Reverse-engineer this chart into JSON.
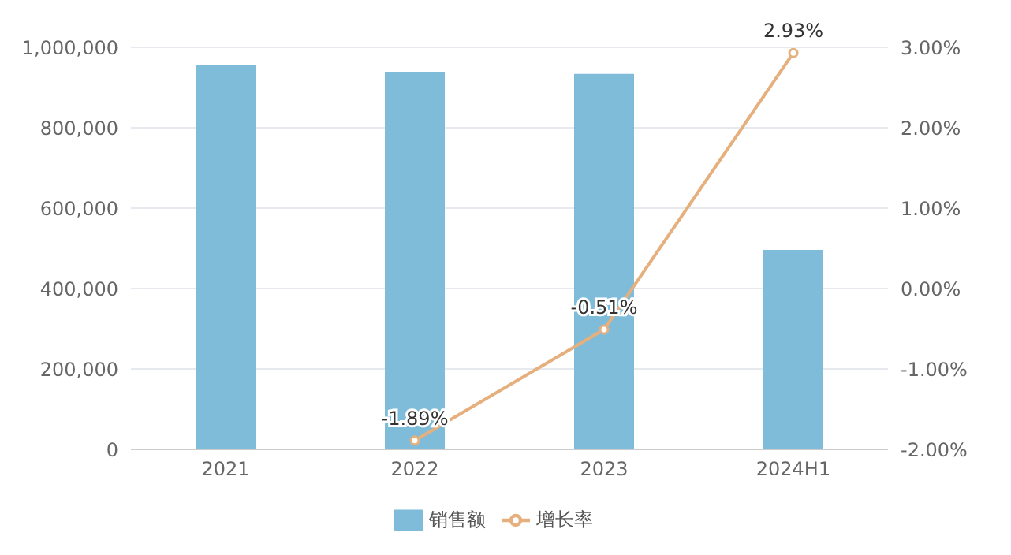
{
  "chart_data": {
    "type": "bar",
    "categories": [
      "2021",
      "2022",
      "2023",
      "2024H1"
    ],
    "series": [
      {
        "name": "销售额",
        "color": "#7fbcd9",
        "values": [
          957000,
          939000,
          934000,
          496000
        ]
      },
      {
        "name": "增长率",
        "type": "line",
        "axis": "y2",
        "color": "#e5b07e",
        "marker": "circle",
        "values": [
          null,
          -1.89,
          -0.51,
          2.93
        ],
        "value_labels": [
          null,
          "-1.89%",
          "-0.51%",
          "2.93%"
        ]
      }
    ],
    "ylim": [
      0,
      1000000
    ],
    "yticks": [
      {
        "value": 0,
        "label": "0"
      },
      {
        "value": 200000,
        "label": "200,000"
      },
      {
        "value": 400000,
        "label": "400,000"
      },
      {
        "value": 600000,
        "label": "600,000"
      },
      {
        "value": 800000,
        "label": "800,000"
      },
      {
        "value": 1000000,
        "label": "1,000,000"
      }
    ],
    "y2lim": [
      -2,
      3
    ],
    "y2ticks": [
      {
        "value": -2,
        "label": "-2.00%"
      },
      {
        "value": -1,
        "label": "-1.00%"
      },
      {
        "value": 0,
        "label": "0.00%"
      },
      {
        "value": 1,
        "label": "1.00%"
      },
      {
        "value": 2,
        "label": "2.00%"
      },
      {
        "value": 3,
        "label": "3.00%"
      }
    ],
    "grid": "y",
    "legend": "bottom"
  }
}
